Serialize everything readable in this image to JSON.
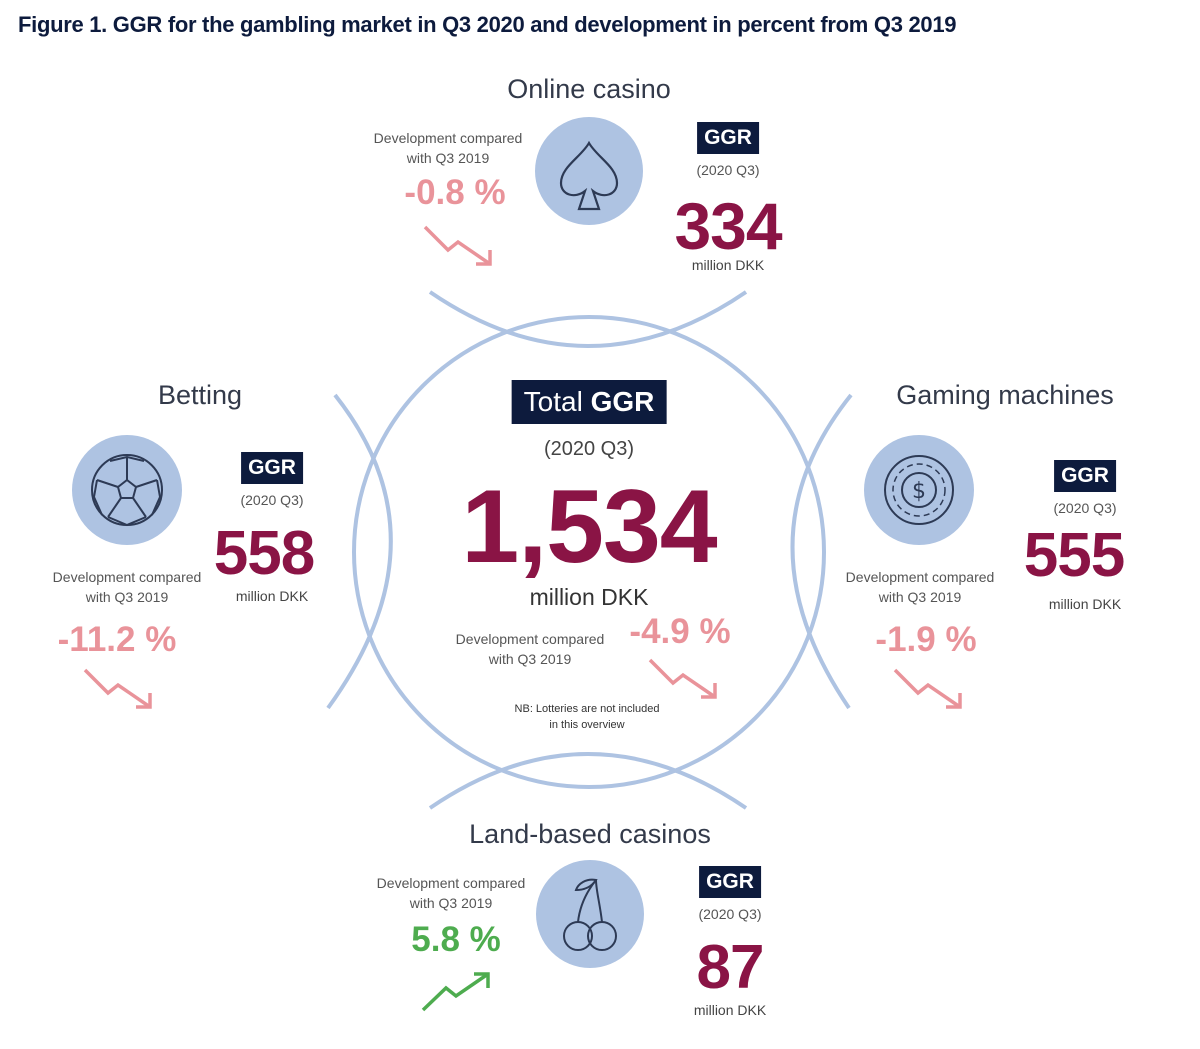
{
  "figure_title": "Figure 1. GGR for the gambling market in Q3 2020 and development in percent from Q3 2019",
  "chart_data": {
    "type": "infographic",
    "title": "Figure 1. GGR for the gambling market in Q3 2020 and development in percent from Q3 2019",
    "unit": "million DKK",
    "period": "(2020 Q3)",
    "total": {
      "badge_prefix": "Total",
      "badge_strong": "GGR",
      "period": "(2020 Q3)",
      "value": 1534,
      "value_label": "1,534",
      "unit": "million DKK",
      "dev_label_1": "Development compared",
      "dev_label_2": "with Q3 2019",
      "change_pct": -4.9,
      "change_label": "-4.9 %",
      "note_1": "NB: Lotteries are not included",
      "note_2": "in this overview"
    },
    "segments": [
      {
        "key": "online",
        "name": "Online casino",
        "badge": "GGR",
        "period": "(2020 Q3)",
        "value": 334,
        "value_label": "334",
        "unit": "million DKK",
        "dev_label_1": "Development compared",
        "dev_label_2": "with Q3 2019",
        "change_pct": -0.8,
        "change_label": "-0.8 %",
        "icon": "spade-icon"
      },
      {
        "key": "betting",
        "name": "Betting",
        "badge": "GGR",
        "period": "(2020 Q3)",
        "value": 558,
        "value_label": "558",
        "unit": "million DKK",
        "dev_label_1": "Development compared",
        "dev_label_2": "with Q3 2019",
        "change_pct": -11.2,
        "change_label": "-11.2 %",
        "icon": "football-icon"
      },
      {
        "key": "gaming",
        "name": "Gaming machines",
        "badge": "GGR",
        "period": "(2020 Q3)",
        "value": 555,
        "value_label": "555",
        "unit": "million DKK",
        "dev_label_1": "Development compared",
        "dev_label_2": "with Q3 2019",
        "change_pct": -1.9,
        "change_label": "-1.9 %",
        "icon": "dollar-chip-icon"
      },
      {
        "key": "land",
        "name": "Land-based casinos",
        "badge": "GGR",
        "period": "(2020 Q3)",
        "value": 87,
        "value_label": "87",
        "unit": "million DKK",
        "dev_label_1": "Development compared",
        "dev_label_2": "with Q3 2019",
        "change_pct": 5.8,
        "change_label": "5.8 %",
        "icon": "cherries-icon"
      }
    ],
    "colors": {
      "value": "#8a1445",
      "negative": "#e9939a",
      "positive": "#4eac4f",
      "badge": "#0d1b3d",
      "ring": "#aec3e2"
    }
  }
}
